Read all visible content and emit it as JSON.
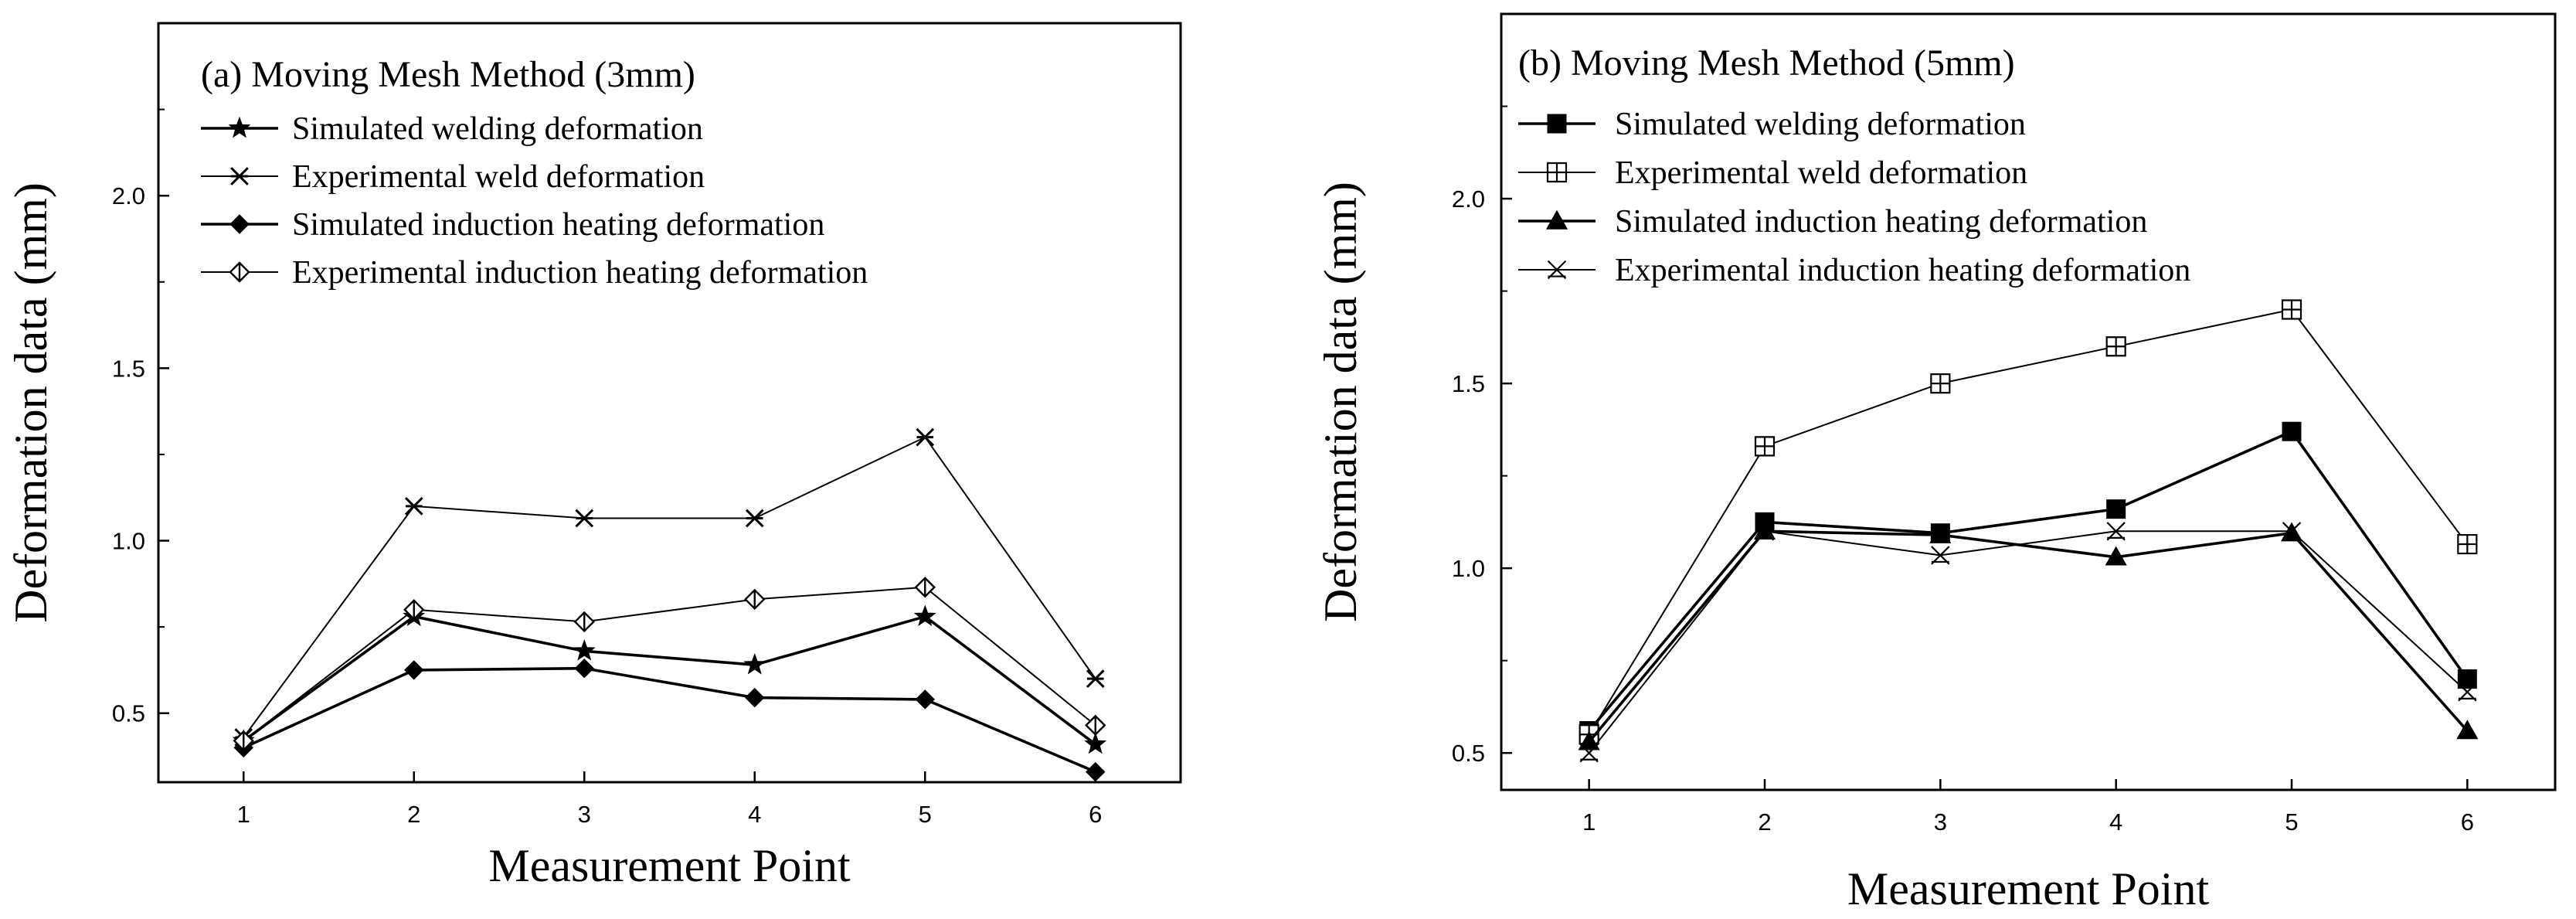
{
  "chart_data": [
    {
      "type": "line",
      "title": "(a) Moving Mesh Method (3mm)",
      "xlabel": "Measurement Point",
      "ylabel": "Deformation data (mm)",
      "xlim": [
        0.5,
        6.5
      ],
      "ylim": [
        0.3,
        2.5
      ],
      "x_ticks": [
        1,
        2,
        3,
        4,
        5,
        6
      ],
      "x_tick_labels": [
        "1",
        "2",
        "3",
        "4",
        "5",
        "6"
      ],
      "y_ticks": [
        0.5,
        1.0,
        1.5,
        2.0
      ],
      "y_tick_labels": [
        "0.5",
        "1.0",
        "1.5",
        "2.0"
      ],
      "grid": false,
      "legend_position": "top-left",
      "series": [
        {
          "name": "Simulated welding deformation",
          "marker": "star",
          "line": "thick",
          "x": [
            1,
            2,
            3,
            4,
            5,
            6
          ],
          "values": [
            0.42,
            0.78,
            0.68,
            0.64,
            0.78,
            0.41
          ]
        },
        {
          "name": "Experimental weld deformation",
          "marker": "asterisk",
          "line": "thin",
          "x": [
            1,
            2,
            3,
            4,
            5,
            6
          ],
          "values": [
            0.43,
            1.1,
            1.065,
            1.065,
            1.3,
            0.6
          ]
        },
        {
          "name": "Simulated induction heating deformation",
          "marker": "diamond-filled",
          "line": "thick",
          "x": [
            1,
            2,
            3,
            4,
            5,
            6
          ],
          "values": [
            0.4,
            0.625,
            0.63,
            0.545,
            0.54,
            0.33
          ]
        },
        {
          "name": "Experimental induction heating deformation",
          "marker": "diamond-cross",
          "line": "thin",
          "x": [
            1,
            2,
            3,
            4,
            5,
            6
          ],
          "values": [
            0.42,
            0.8,
            0.765,
            0.83,
            0.865,
            0.465
          ]
        }
      ]
    },
    {
      "type": "line",
      "title": "(b) Moving Mesh Method (5mm)",
      "xlabel": "Measurement Point",
      "ylabel": "Deformation data (mm)",
      "xlim": [
        0.5,
        6.5
      ],
      "ylim": [
        0.4,
        2.5
      ],
      "x_ticks": [
        1,
        2,
        3,
        4,
        5,
        6
      ],
      "x_tick_labels": [
        "1",
        "2",
        "3",
        "4",
        "5",
        "6"
      ],
      "y_ticks": [
        0.5,
        1.0,
        1.5,
        2.0
      ],
      "y_tick_labels": [
        "0.5",
        "1.0",
        "1.5",
        "2.0"
      ],
      "grid": false,
      "legend_position": "top-left",
      "series": [
        {
          "name": "Simulated welding deformation",
          "marker": "square-filled",
          "line": "thick",
          "x": [
            1,
            2,
            3,
            4,
            5,
            6
          ],
          "values": [
            0.56,
            1.125,
            1.095,
            1.16,
            1.37,
            0.7
          ]
        },
        {
          "name": "Experimental weld deformation",
          "marker": "square-cross",
          "line": "thin",
          "x": [
            1,
            2,
            3,
            4,
            5,
            6
          ],
          "values": [
            0.55,
            1.33,
            1.5,
            1.6,
            1.7,
            1.065
          ]
        },
        {
          "name": "Simulated induction heating deformation",
          "marker": "triangle-filled",
          "line": "thick",
          "x": [
            1,
            2,
            3,
            4,
            5,
            6
          ],
          "values": [
            0.53,
            1.1,
            1.09,
            1.03,
            1.095,
            0.56
          ]
        },
        {
          "name": "Experimental induction heating deformation",
          "marker": "x-triangle",
          "line": "thin",
          "x": [
            1,
            2,
            3,
            4,
            5,
            6
          ],
          "values": [
            0.5,
            1.1,
            1.035,
            1.1,
            1.1,
            0.665
          ]
        }
      ]
    }
  ]
}
